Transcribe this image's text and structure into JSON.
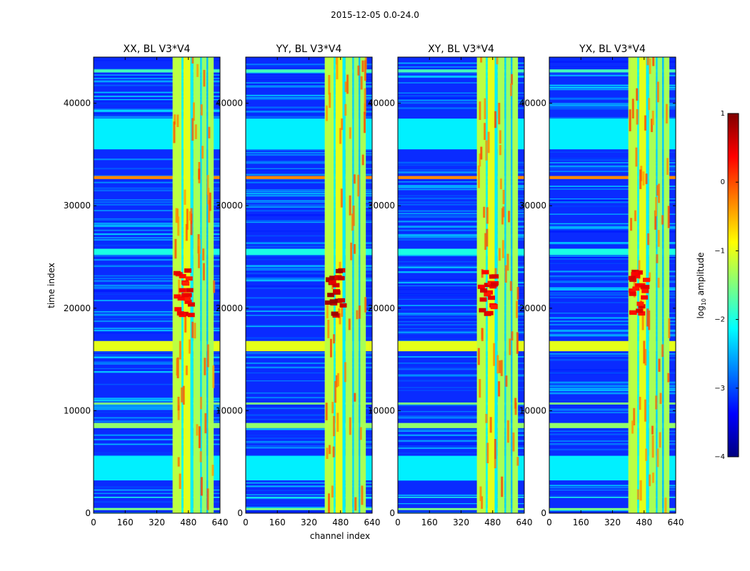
{
  "suptitle": "2015-12-05 0.0-24.0",
  "colors": {
    "background": "#0a2bff",
    "jet": [
      "#00007f",
      "#0000ff",
      "#007fff",
      "#00ffff",
      "#7fff7f",
      "#ffff00",
      "#ff7f00",
      "#ff0000",
      "#7f0000"
    ]
  },
  "chart_data": {
    "type": "heatmap",
    "xlabel": "channel index",
    "ylabel": "time index",
    "xlim": [
      0,
      640
    ],
    "ylim": [
      0,
      44500
    ],
    "xticks": [
      0,
      160,
      320,
      480,
      640
    ],
    "xtick_labels": [
      "0",
      "160",
      "320",
      "480",
      "640"
    ],
    "yticks": [
      0,
      10000,
      20000,
      30000,
      40000
    ],
    "ytick_labels": [
      "0",
      "10000",
      "20000",
      "30000",
      "40000"
    ],
    "panels": [
      {
        "title": "XX, BL V3*V4",
        "pol": "XX"
      },
      {
        "title": "YY, BL V3*V4",
        "pol": "YY"
      },
      {
        "title": "XY, BL V3*V4",
        "pol": "XY"
      },
      {
        "title": "YX, BL V3*V4",
        "pol": "YX"
      }
    ],
    "colorbar": {
      "label": "log10 amplitude",
      "label_main": "log",
      "label_sub": "10",
      "label_rest": " amplitude",
      "range": [
        -4,
        1
      ],
      "ticks": [
        1,
        0,
        -1,
        -2,
        -3,
        -4
      ],
      "tick_labels": [
        "1",
        "0",
        "−1",
        "−2",
        "−3",
        "−4"
      ]
    },
    "rfi_channel_bands": [
      {
        "from": 400,
        "to": 445,
        "level": -1.2
      },
      {
        "from": 445,
        "to": 455,
        "level": -2.0
      },
      {
        "from": 455,
        "to": 490,
        "level": -1.0
      },
      {
        "from": 490,
        "to": 505,
        "level": -2.2
      },
      {
        "from": 505,
        "to": 540,
        "level": -1.3
      },
      {
        "from": 540,
        "to": 548,
        "level": -2.3
      },
      {
        "from": 548,
        "to": 572,
        "level": -1.4
      },
      {
        "from": 572,
        "to": 580,
        "level": -2.4
      },
      {
        "from": 580,
        "to": 608,
        "level": -1.3
      }
    ],
    "rfi_time_bands": [
      {
        "from": 300,
        "to": 500,
        "level": -1.5
      },
      {
        "from": 1500,
        "to": 1600,
        "level": -2.0
      },
      {
        "from": 3200,
        "to": 5600,
        "level": -2.2
      },
      {
        "from": 8300,
        "to": 8800,
        "level": -1.4
      },
      {
        "from": 10600,
        "to": 10800,
        "level": -1.5
      },
      {
        "from": 15800,
        "to": 16800,
        "level": -1.0
      },
      {
        "from": 25200,
        "to": 25800,
        "level": -2.0
      },
      {
        "from": 32600,
        "to": 32900,
        "level": -0.3
      },
      {
        "from": 35500,
        "to": 38500,
        "level": -2.2
      },
      {
        "from": 43000,
        "to": 43300,
        "level": -1.8
      }
    ],
    "bursts": [
      {
        "ch_from": 400,
        "ch_to": 500,
        "t_from": 19500,
        "t_to": 24000,
        "level": 0.2
      }
    ]
  }
}
